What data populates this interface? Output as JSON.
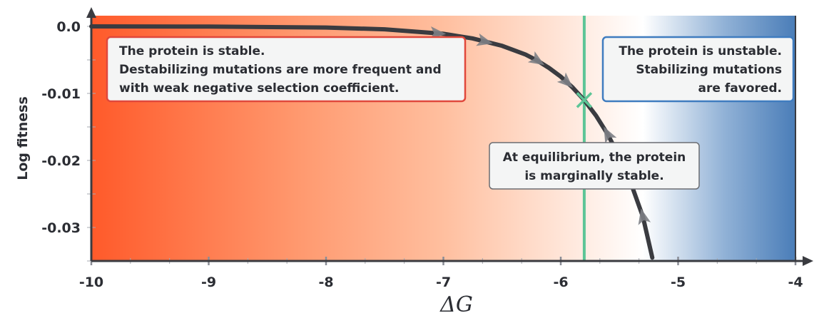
{
  "chart_data": {
    "type": "line",
    "xlabel": "ΔG",
    "ylabel": "Log fitness",
    "xlim": [
      -10,
      -4
    ],
    "ylim": [
      -0.035,
      0.001
    ],
    "x_ticks": [
      "-10",
      "-9",
      "-8",
      "-7",
      "-6",
      "-5",
      "-4"
    ],
    "y_ticks": [
      "0.0",
      "-0.01",
      "-0.02",
      "-0.03"
    ],
    "x_tick_values": [
      -10,
      -9,
      -8,
      -7,
      -6,
      -5,
      -4
    ],
    "y_tick_values": [
      0.0,
      -0.01,
      -0.02,
      -0.03
    ],
    "grid": false,
    "series": [
      {
        "x": [
          -10,
          -9,
          -8,
          -7.5,
          -7,
          -6.75,
          -6.5,
          -6.3,
          -6.2,
          -6.1,
          -6,
          -5.9,
          -5.8,
          -5.7,
          -5.6,
          -5.5,
          -5.4,
          -5.3,
          -5.22
        ],
        "y": [
          0,
          -3e-05,
          -0.00017,
          -0.00044,
          -0.0011,
          -0.0018,
          -0.0029,
          -0.0042,
          -0.0051,
          -0.0062,
          -0.0075,
          -0.0091,
          -0.011,
          -0.0133,
          -0.0161,
          -0.0195,
          -0.0235,
          -0.0284,
          -0.0345
        ],
        "color": "#3a3b40",
        "flow_arrows_x": [
          -7.05,
          -6.65,
          -6.2,
          -5.95,
          -5.6,
          -5.3
        ]
      }
    ],
    "equilibrium": {
      "x": -5.8,
      "y": -0.011,
      "color": "#5cc596"
    },
    "background_gradient": {
      "left": "#ff5a2a",
      "middle": "#ffffff",
      "right": "#4a7db8"
    },
    "annotations": [
      {
        "lines": [
          "The protein is stable.",
          "Destabilizing mutations are more frequent and",
          "with weak negative selection coefficient."
        ],
        "border": "#e0483c",
        "align": "left"
      },
      {
        "lines": [
          "The protein is unstable.",
          "Stabilizing mutations",
          "are favored."
        ],
        "border": "#3f7cbf",
        "align": "right"
      },
      {
        "lines": [
          "At equilibrium, the protein",
          "is marginally stable."
        ],
        "border": "#6b6d72",
        "align": "center"
      }
    ]
  }
}
